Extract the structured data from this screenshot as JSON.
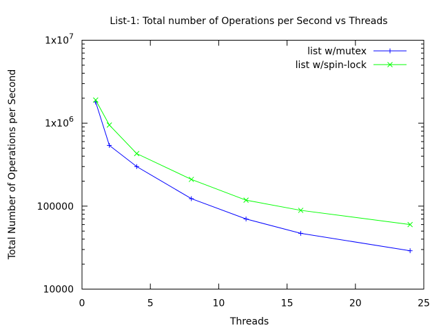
{
  "chart_data": {
    "type": "line",
    "title": "List-1: Total number of Operations per Second vs Threads",
    "xlabel": "Threads",
    "ylabel": "Total Number of Operations per Second",
    "xlim": [
      0,
      25
    ],
    "ylim": [
      10000,
      10000000
    ],
    "y_scale": "log",
    "grid": false,
    "legend_position": "top-right",
    "x_ticks": [
      0,
      5,
      10,
      15,
      20,
      25
    ],
    "y_ticks": [
      {
        "value": 10000,
        "label": "10000"
      },
      {
        "value": 100000,
        "label": "100000"
      },
      {
        "value": 1000000,
        "label": "1x10",
        "exponent": "6"
      },
      {
        "value": 10000000,
        "label": "1x10",
        "exponent": "7"
      }
    ],
    "series": [
      {
        "name": "list w/mutex",
        "color": "#0000ff",
        "marker": "plus",
        "x": [
          1,
          2,
          4,
          8,
          12,
          16,
          24
        ],
        "y": [
          1800000,
          540000,
          300000,
          123000,
          70000,
          47000,
          29000
        ]
      },
      {
        "name": "list w/spin-lock",
        "color": "#00ff00",
        "marker": "cross",
        "x": [
          1,
          2,
          4,
          8,
          12,
          16,
          24
        ],
        "y": [
          1900000,
          950000,
          430000,
          210000,
          118000,
          89000,
          60000
        ]
      }
    ]
  }
}
